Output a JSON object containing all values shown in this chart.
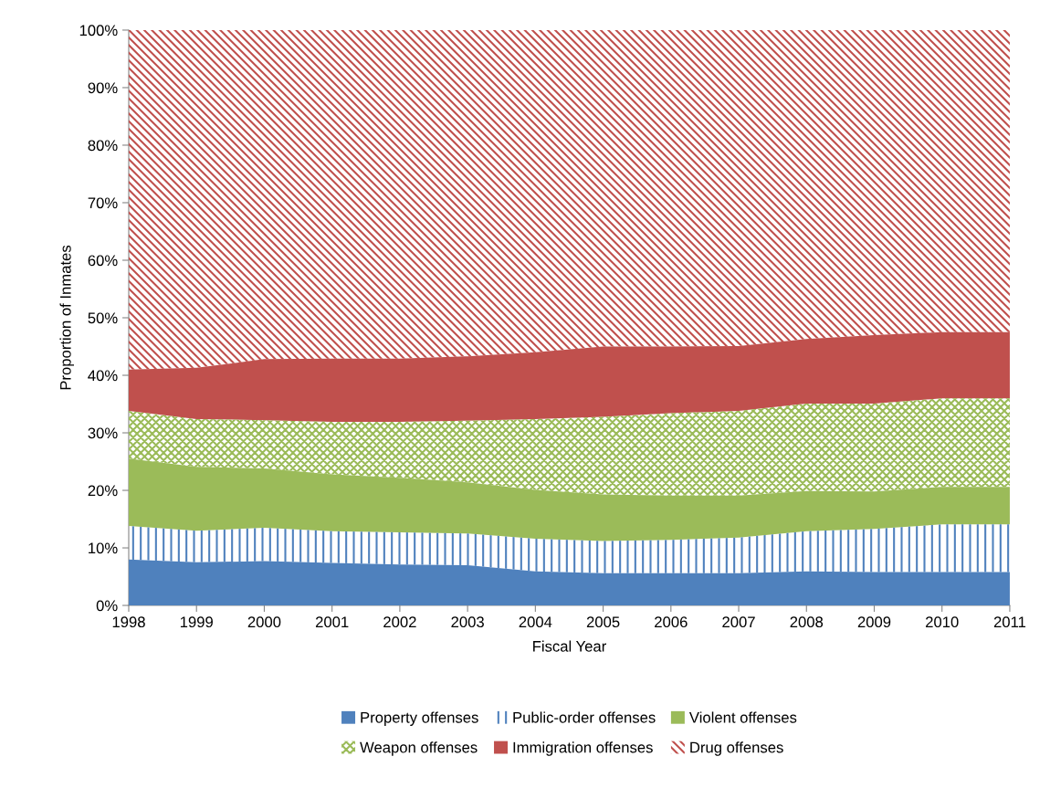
{
  "chart_data": {
    "type": "area",
    "stacked": true,
    "xlabel": "Fiscal Year",
    "ylabel": "Proportion of Inmates",
    "x": [
      1998,
      1999,
      2000,
      2001,
      2002,
      2003,
      2004,
      2005,
      2006,
      2007,
      2008,
      2009,
      2010,
      2011
    ],
    "xlim": [
      1998,
      2011
    ],
    "xticks": [
      1998,
      1999,
      2000,
      2001,
      2002,
      2003,
      2004,
      2005,
      2006,
      2007,
      2008,
      2009,
      2010,
      2011
    ],
    "ylim": [
      0,
      100
    ],
    "yticks": [
      {
        "value": 0,
        "label": "0%"
      },
      {
        "value": 10,
        "label": "10%"
      },
      {
        "value": 20,
        "label": "20%"
      },
      {
        "value": 30,
        "label": "30%"
      },
      {
        "value": 40,
        "label": "40%"
      },
      {
        "value": 50,
        "label": "50%"
      },
      {
        "value": 60,
        "label": "60%"
      },
      {
        "value": 70,
        "label": "70%"
      },
      {
        "value": 80,
        "label": "80%"
      },
      {
        "value": 90,
        "label": "90%"
      },
      {
        "value": 100,
        "label": "100%"
      }
    ],
    "grid": false,
    "legend": "bottom",
    "series": [
      {
        "name": "Property offenses",
        "color": "#4f81bd",
        "values": [
          8.0,
          7.5,
          7.7,
          7.4,
          7.1,
          7.0,
          5.9,
          5.6,
          5.6,
          5.6,
          5.9,
          5.8,
          5.8,
          5.8
        ]
      },
      {
        "name": "Public-order offenses",
        "color": "#4f81bd",
        "values": [
          5.8,
          5.5,
          5.8,
          5.5,
          5.6,
          5.5,
          5.7,
          5.6,
          5.8,
          6.2,
          7.0,
          7.5,
          8.3,
          8.3
        ]
      },
      {
        "name": "Violent offenses",
        "color": "#9bbb59",
        "values": [
          11.7,
          11.1,
          10.3,
          9.9,
          9.5,
          8.9,
          8.5,
          8.1,
          7.7,
          7.3,
          7.0,
          6.5,
          6.5,
          6.5
        ]
      },
      {
        "name": "Weapon offenses",
        "color": "#9bbb59",
        "values": [
          8.3,
          8.3,
          8.4,
          9.1,
          9.7,
          10.7,
          12.3,
          13.5,
          14.3,
          14.7,
          15.2,
          15.3,
          15.4,
          15.4
        ]
      },
      {
        "name": "Immigration offenses",
        "color": "#c0504d",
        "values": [
          7.2,
          8.9,
          10.6,
          11.0,
          11.0,
          11.2,
          11.6,
          12.2,
          11.6,
          11.3,
          11.2,
          11.9,
          11.5,
          11.5
        ]
      },
      {
        "name": "Drug offenses",
        "color": "#c0504d",
        "values": [
          59.0,
          58.7,
          57.2,
          57.1,
          57.1,
          56.7,
          56.0,
          55.0,
          55.0,
          54.9,
          53.7,
          53.0,
          52.5,
          52.5
        ]
      }
    ]
  }
}
